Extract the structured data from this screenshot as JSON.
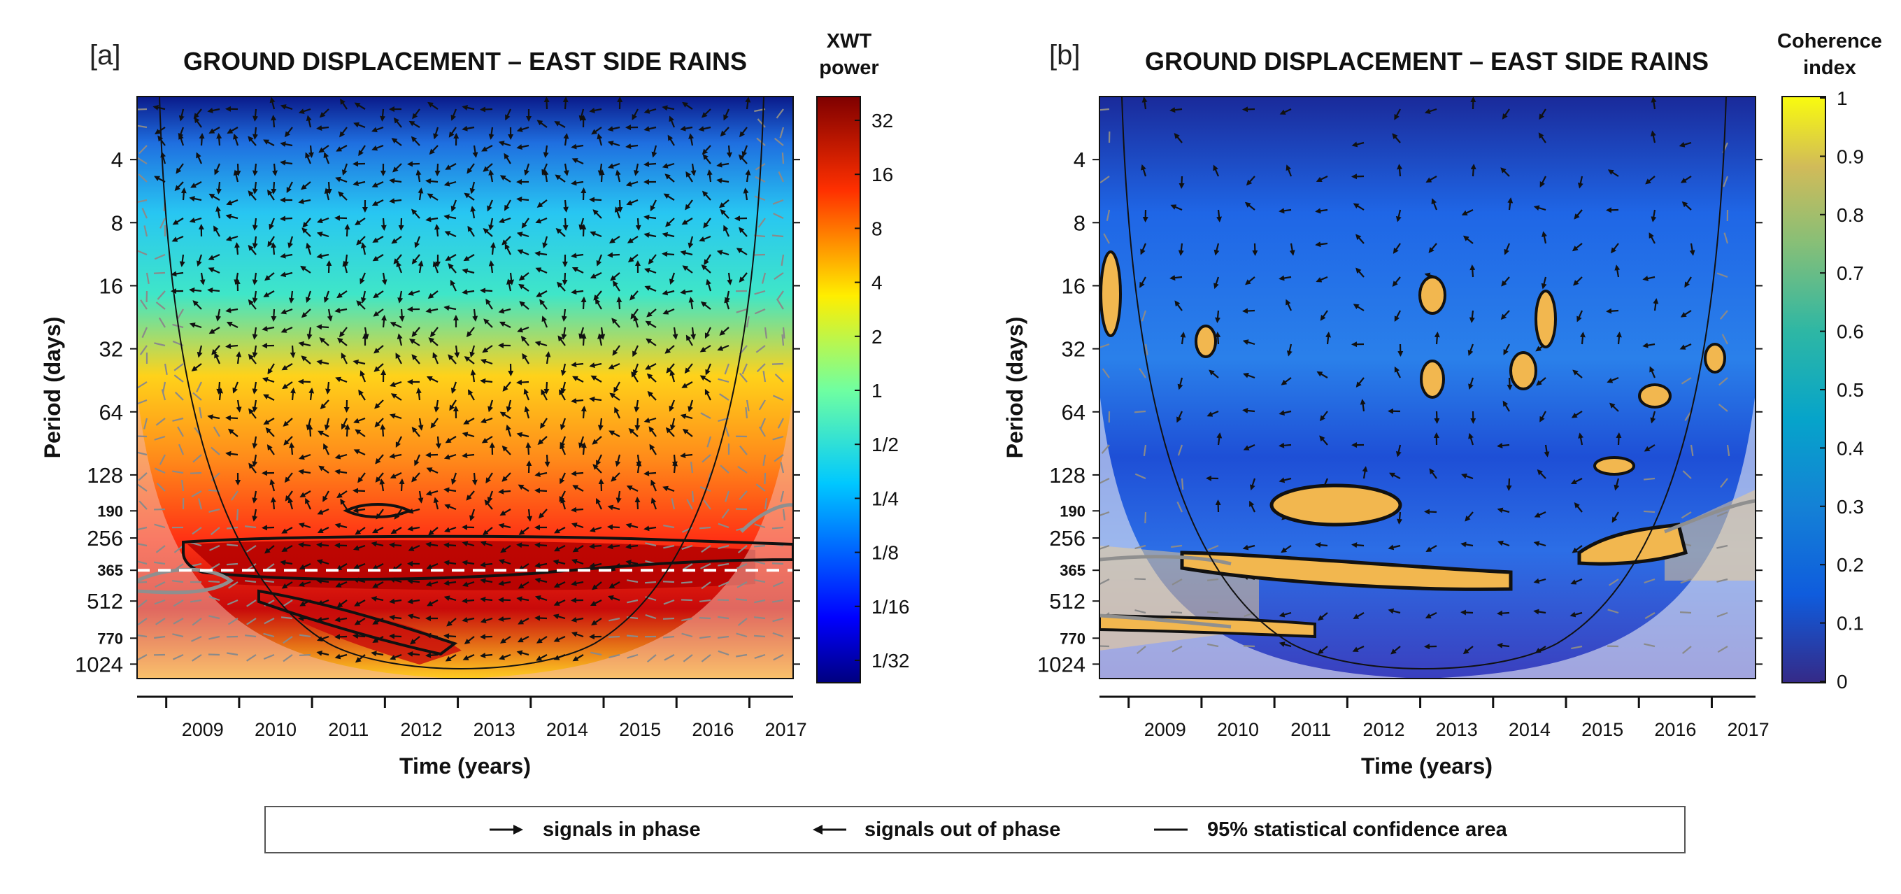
{
  "chart_data": [
    {
      "type": "heatmap",
      "panel_label": "[a]",
      "title": "GROUND DISPLACEMENT – EAST SIDE RAINS",
      "xlabel": "Time (years)",
      "ylabel": "Period (days)",
      "x_ticks": [
        "2009",
        "2010",
        "2011",
        "2012",
        "2013",
        "2014",
        "2015",
        "2016",
        "2017"
      ],
      "x_range": [
        2008.6,
        2017.6
      ],
      "y_scale": "log2",
      "y_range": [
        2,
        1200
      ],
      "y_ticks": [
        {
          "value": 4,
          "label": "4",
          "bold": false
        },
        {
          "value": 8,
          "label": "8",
          "bold": false
        },
        {
          "value": 16,
          "label": "16",
          "bold": false
        },
        {
          "value": 32,
          "label": "32",
          "bold": false
        },
        {
          "value": 64,
          "label": "64",
          "bold": false
        },
        {
          "value": 128,
          "label": "128",
          "bold": false
        },
        {
          "value": 190,
          "label": "190",
          "bold": true
        },
        {
          "value": 256,
          "label": "256",
          "bold": false
        },
        {
          "value": 365,
          "label": "365",
          "bold": true
        },
        {
          "value": 512,
          "label": "512",
          "bold": false
        },
        {
          "value": 770,
          "label": "770",
          "bold": true
        },
        {
          "value": 1024,
          "label": "1024",
          "bold": false
        }
      ],
      "reference_line_period": 365,
      "colorbar": {
        "title_line1": "XWT",
        "title_line2": "power",
        "scale": "jet",
        "tick_labels": [
          "32",
          "16",
          "8",
          "4",
          "2",
          "1",
          "1/2",
          "1/4",
          "1/8",
          "1/16",
          "1/32"
        ]
      },
      "significant_bands_days": [
        [
          190,
          200
        ],
        [
          256,
          512
        ],
        [
          512,
          900
        ]
      ]
    },
    {
      "type": "heatmap",
      "panel_label": "[b]",
      "title": "GROUND DISPLACEMENT – EAST SIDE RAINS",
      "xlabel": "Time (years)",
      "ylabel": "Period (days)",
      "x_ticks": [
        "2009",
        "2010",
        "2011",
        "2012",
        "2013",
        "2014",
        "2015",
        "2016",
        "2017"
      ],
      "x_range": [
        2008.6,
        2017.6
      ],
      "y_scale": "log2",
      "y_range": [
        2,
        1200
      ],
      "y_ticks": [
        {
          "value": 4,
          "label": "4",
          "bold": false
        },
        {
          "value": 8,
          "label": "8",
          "bold": false
        },
        {
          "value": 16,
          "label": "16",
          "bold": false
        },
        {
          "value": 32,
          "label": "32",
          "bold": false
        },
        {
          "value": 64,
          "label": "64",
          "bold": false
        },
        {
          "value": 128,
          "label": "128",
          "bold": false
        },
        {
          "value": 190,
          "label": "190",
          "bold": true
        },
        {
          "value": 256,
          "label": "256",
          "bold": false
        },
        {
          "value": 365,
          "label": "365",
          "bold": true
        },
        {
          "value": 512,
          "label": "512",
          "bold": false
        },
        {
          "value": 770,
          "label": "770",
          "bold": true
        },
        {
          "value": 1024,
          "label": "1024",
          "bold": false
        }
      ],
      "colorbar": {
        "title_line1": "Coherence",
        "title_line2": "index",
        "scale": "parula",
        "range": [
          0,
          1
        ],
        "tick_labels": [
          "1",
          "0.9",
          "0.8",
          "0.7",
          "0.6",
          "0.5",
          "0.4",
          "0.3",
          "0.2",
          "0.1",
          "0"
        ]
      },
      "significant_bands_days": [
        [
          170,
          215
        ],
        [
          300,
          420
        ],
        [
          700,
          900
        ]
      ]
    }
  ],
  "legend": {
    "in_phase": "signals in phase",
    "out_of_phase": "signals out of phase",
    "confidence": "95% statistical confidence area"
  },
  "colors": {
    "arrow": "#111111",
    "shaded_arrow": "#8a8a8a",
    "contour": "#111111",
    "coi_contour": "#8f8f8f",
    "reference_line": "#ffffff",
    "legend_border": "#555555"
  }
}
